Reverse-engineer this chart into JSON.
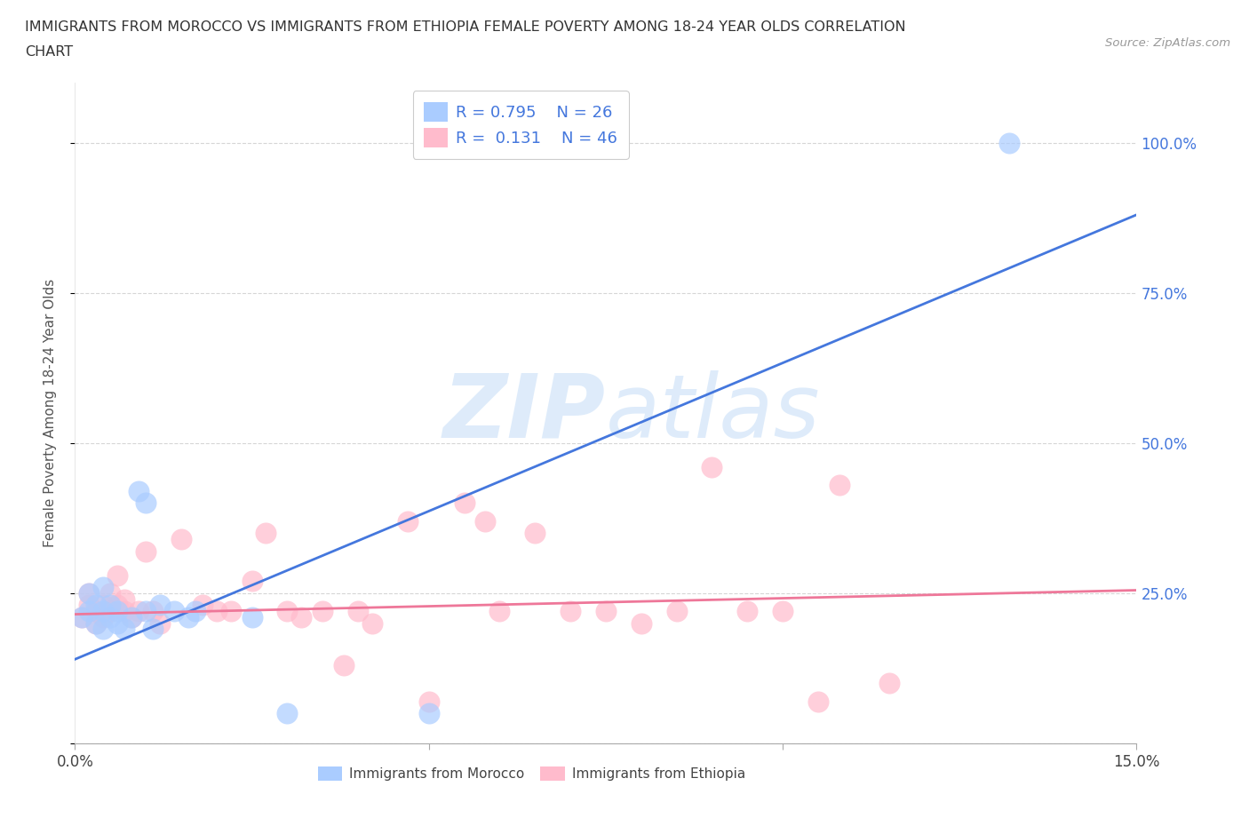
{
  "title_line1": "IMMIGRANTS FROM MOROCCO VS IMMIGRANTS FROM ETHIOPIA FEMALE POVERTY AMONG 18-24 YEAR OLDS CORRELATION",
  "title_line2": "CHART",
  "source_text": "Source: ZipAtlas.com",
  "ylabel": "Female Poverty Among 18-24 Year Olds",
  "xlim": [
    0.0,
    0.15
  ],
  "ylim": [
    0.0,
    1.1
  ],
  "morocco_color": "#aaccff",
  "ethiopia_color": "#ffbbcc",
  "morocco_line_color": "#4477dd",
  "ethiopia_line_color": "#ee7799",
  "watermark_color": "#c8dff8",
  "background_color": "#ffffff",
  "grid_color": "#cccccc",
  "right_tick_color": "#4477dd",
  "morocco_x": [
    0.001,
    0.002,
    0.002,
    0.003,
    0.003,
    0.004,
    0.004,
    0.004,
    0.005,
    0.005,
    0.006,
    0.006,
    0.007,
    0.008,
    0.009,
    0.01,
    0.01,
    0.011,
    0.012,
    0.014,
    0.016,
    0.017,
    0.025,
    0.03,
    0.05,
    0.132
  ],
  "morocco_y": [
    0.21,
    0.22,
    0.25,
    0.2,
    0.23,
    0.19,
    0.22,
    0.26,
    0.21,
    0.23,
    0.22,
    0.2,
    0.19,
    0.21,
    0.42,
    0.4,
    0.22,
    0.19,
    0.23,
    0.22,
    0.21,
    0.22,
    0.21,
    0.05,
    0.05,
    1.0
  ],
  "ethiopia_x": [
    0.001,
    0.002,
    0.002,
    0.003,
    0.003,
    0.004,
    0.004,
    0.005,
    0.005,
    0.006,
    0.006,
    0.007,
    0.007,
    0.008,
    0.009,
    0.01,
    0.011,
    0.012,
    0.015,
    0.018,
    0.02,
    0.022,
    0.025,
    0.027,
    0.03,
    0.032,
    0.035,
    0.038,
    0.04,
    0.042,
    0.047,
    0.05,
    0.055,
    0.058,
    0.06,
    0.065,
    0.07,
    0.075,
    0.08,
    0.085,
    0.09,
    0.095,
    0.1,
    0.105,
    0.108,
    0.115
  ],
  "ethiopia_y": [
    0.21,
    0.25,
    0.23,
    0.22,
    0.2,
    0.23,
    0.21,
    0.25,
    0.22,
    0.28,
    0.23,
    0.22,
    0.24,
    0.21,
    0.22,
    0.32,
    0.22,
    0.2,
    0.34,
    0.23,
    0.22,
    0.22,
    0.27,
    0.35,
    0.22,
    0.21,
    0.22,
    0.13,
    0.22,
    0.2,
    0.37,
    0.07,
    0.4,
    0.37,
    0.22,
    0.35,
    0.22,
    0.22,
    0.2,
    0.22,
    0.46,
    0.22,
    0.22,
    0.07,
    0.43,
    0.1
  ]
}
